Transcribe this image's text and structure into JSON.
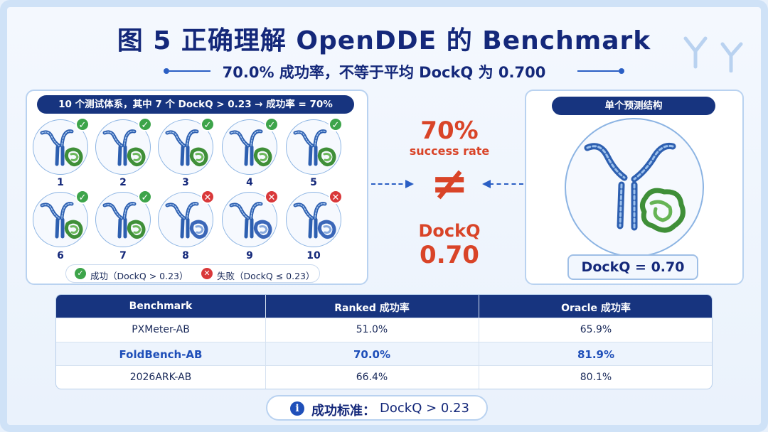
{
  "title": "图 5  正确理解 OpenDDE 的 Benchmark",
  "subtitle": "70.0% 成功率，不等于平均 DockQ 为 0.700",
  "left_panel": {
    "header": "10 个测试体系，其中 7 个 DockQ > 0.23 → 成功率 = 70%",
    "systems": [
      {
        "num": "1",
        "status": "success"
      },
      {
        "num": "2",
        "status": "success"
      },
      {
        "num": "3",
        "status": "success"
      },
      {
        "num": "4",
        "status": "success"
      },
      {
        "num": "5",
        "status": "success"
      },
      {
        "num": "6",
        "status": "success"
      },
      {
        "num": "7",
        "status": "success"
      },
      {
        "num": "8",
        "status": "fail"
      },
      {
        "num": "9",
        "status": "fail"
      },
      {
        "num": "10",
        "status": "fail"
      }
    ],
    "legend_success": "成功（DockQ > 0.23）",
    "legend_fail": "失败（DockQ ≤ 0.23）"
  },
  "middle": {
    "rate": "70%",
    "rate_label": "success rate",
    "neq": "≠",
    "dockq_label": "DockQ",
    "dockq_value": "0.70"
  },
  "right_panel": {
    "header": "单个预测结构",
    "dockq": "DockQ = 0.70"
  },
  "table": {
    "headers": [
      "Benchmark",
      "Ranked 成功率",
      "Oracle 成功率"
    ],
    "rows": [
      {
        "name": "PXMeter-AB",
        "ranked": "51.0%",
        "oracle": "65.9%",
        "highlight": false
      },
      {
        "name": "FoldBench-AB",
        "ranked": "70.0%",
        "oracle": "81.9%",
        "highlight": true
      },
      {
        "name": "2026ARK-AB",
        "ranked": "66.4%",
        "oracle": "80.1%",
        "highlight": false
      }
    ]
  },
  "criterion": {
    "icon": "i",
    "label": "成功标准：",
    "value": "DockQ > 0.23"
  },
  "icons": {
    "success": "check-icon",
    "fail": "cross-icon",
    "info": "info-icon"
  },
  "colors": {
    "navy": "#17347f",
    "accent_red": "#d94428",
    "success": "#3da44a",
    "fail": "#d9383a",
    "antibody": "#3a6fc2",
    "antigen": "#4c9a3f"
  }
}
